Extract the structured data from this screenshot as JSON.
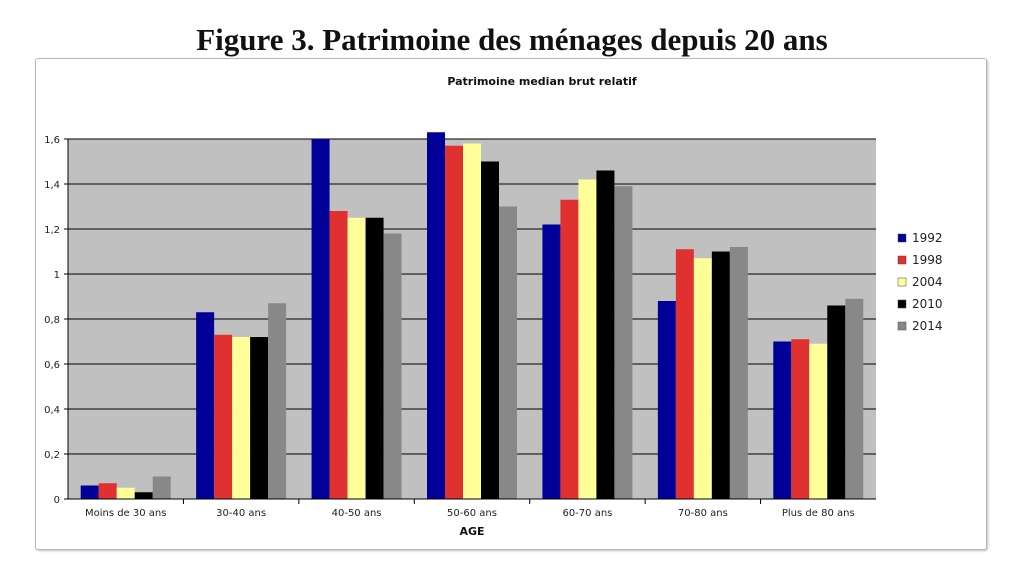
{
  "figure_title": "Figure 3. Patrimoine des ménages depuis 20 ans",
  "chart_data": {
    "type": "bar",
    "title": "Patrimoine median brut relatif",
    "xlabel": "AGE",
    "ylabel": "",
    "ylim": [
      0,
      1.6
    ],
    "yticks": [
      0,
      0.2,
      0.4,
      0.6,
      0.8,
      1,
      1.2,
      1.4,
      1.6
    ],
    "ytick_labels": [
      "0",
      "0,2",
      "0,4",
      "0,6",
      "0,8",
      "1",
      "1,2",
      "1,4",
      "1,6"
    ],
    "grid": true,
    "legend_position": "right",
    "categories": [
      "Moins de  30 ans",
      "30-40 ans",
      "40-50 ans",
      "50-60 ans",
      "60-70 ans",
      "70-80 ans",
      "Plus de 80 ans"
    ],
    "series": [
      {
        "name": "1992",
        "color": "#000099",
        "values": [
          0.06,
          0.83,
          1.6,
          1.63,
          1.22,
          0.88,
          0.7
        ]
      },
      {
        "name": "1998",
        "color": "#e03030",
        "values": [
          0.07,
          0.73,
          1.28,
          1.57,
          1.33,
          1.11,
          0.71
        ]
      },
      {
        "name": "2004",
        "color": "#ffff99",
        "values": [
          0.05,
          0.72,
          1.25,
          1.58,
          1.42,
          1.07,
          0.69
        ]
      },
      {
        "name": "2010",
        "color": "#000000",
        "values": [
          0.03,
          0.72,
          1.25,
          1.5,
          1.46,
          1.1,
          0.86
        ]
      },
      {
        "name": "2014",
        "color": "#888888",
        "values": [
          0.1,
          0.87,
          1.18,
          1.3,
          1.39,
          1.12,
          0.89
        ]
      }
    ]
  }
}
